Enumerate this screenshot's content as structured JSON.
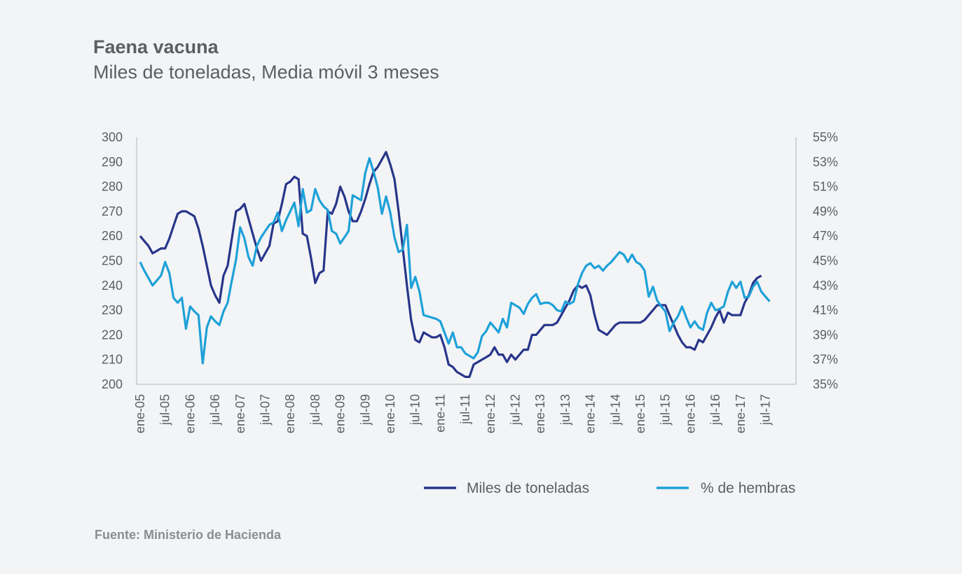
{
  "title": "Faena vacuna",
  "subtitle": "Miles de toneladas, Media móvil 3 meses",
  "source": "Fuente: Ministerio de Hacienda",
  "chart_data": {
    "type": "line",
    "x_labels": [
      "ene-05",
      "jul-05",
      "ene-06",
      "jul-06",
      "ene-07",
      "jul-07",
      "ene-08",
      "jul-08",
      "ene-09",
      "jul-09",
      "ene-10",
      "jul-10",
      "ene-11",
      "jul-11",
      "ene-12",
      "jul-12",
      "ene-13",
      "jul-13",
      "ene-14",
      "jul-14",
      "ene-15",
      "jul-15",
      "ene-16",
      "jul-16",
      "ene-17",
      "jul-17"
    ],
    "y_left": {
      "ticks": [
        "200",
        "210",
        "220",
        "230",
        "240",
        "250",
        "260",
        "270",
        "280",
        "290",
        "300"
      ],
      "ylim": [
        200,
        300
      ]
    },
    "y_right": {
      "ticks": [
        "35%",
        "37%",
        "39%",
        "41%",
        "43%",
        "45%",
        "47%",
        "49%",
        "51%",
        "53%",
        "55%"
      ],
      "ylim": [
        35,
        55
      ]
    },
    "series": [
      {
        "name": "Miles de toneladas",
        "axis": "left",
        "color": "#28358a",
        "values": [
          260,
          258,
          256,
          253,
          254,
          255,
          255,
          259,
          264,
          269,
          270,
          270,
          269,
          268,
          263,
          256,
          248,
          240,
          236,
          233,
          244,
          248,
          259,
          270,
          271,
          273,
          267,
          261,
          255,
          250,
          253,
          256,
          265,
          266,
          273,
          281,
          282,
          284,
          283,
          261,
          260,
          251,
          241,
          245,
          246,
          270,
          269,
          273,
          280,
          276,
          270,
          266,
          266,
          270,
          275,
          281,
          286,
          288,
          291,
          294,
          289,
          283,
          270,
          255,
          240,
          226,
          218,
          217,
          221,
          220,
          219,
          219,
          220,
          215,
          208,
          207,
          205,
          204,
          203,
          203,
          208,
          209,
          210,
          211,
          212,
          215,
          212,
          212,
          209,
          212,
          210,
          212,
          214,
          214,
          220,
          220,
          222,
          224,
          224,
          224,
          225,
          228,
          231,
          234,
          238,
          240,
          239,
          240,
          236,
          228,
          222,
          221,
          220,
          222,
          224,
          225,
          225,
          225,
          225,
          225,
          225,
          226,
          228,
          230,
          232,
          232,
          232,
          228,
          224,
          220,
          217,
          215,
          215,
          214,
          218,
          217,
          220,
          223,
          227,
          230,
          225,
          229,
          228,
          228,
          228,
          233,
          236,
          241,
          243,
          244
        ]
      },
      {
        "name": "% de hembras",
        "axis": "right",
        "color": "#1ea1d8",
        "values": [
          44.9,
          44.2,
          43.6,
          43.0,
          43.4,
          43.8,
          44.9,
          44.0,
          42.0,
          41.6,
          42.0,
          39.5,
          41.3,
          40.9,
          40.6,
          36.7,
          39.6,
          40.5,
          40.1,
          39.8,
          40.9,
          41.6,
          43.4,
          45.1,
          47.7,
          46.8,
          45.3,
          44.6,
          46.2,
          46.9,
          47.4,
          47.9,
          48.1,
          48.9,
          47.4,
          48.3,
          49.0,
          49.7,
          47.8,
          50.8,
          48.9,
          49.1,
          50.8,
          49.9,
          49.4,
          49.1,
          47.4,
          47.2,
          46.4,
          46.9,
          47.4,
          50.3,
          50.1,
          49.9,
          52.1,
          53.3,
          52.2,
          50.9,
          48.8,
          50.2,
          48.9,
          46.9,
          45.7,
          45.9,
          47.9,
          42.8,
          43.7,
          42.5,
          40.6,
          40.5,
          40.4,
          40.3,
          40.1,
          39.2,
          38.3,
          39.2,
          38.0,
          38.0,
          37.5,
          37.3,
          37.1,
          37.6,
          38.9,
          39.3,
          40.0,
          39.6,
          39.2,
          40.3,
          39.6,
          41.6,
          41.4,
          41.2,
          40.7,
          41.5,
          42.0,
          42.3,
          41.5,
          41.6,
          41.6,
          41.4,
          41.0,
          40.9,
          41.7,
          41.5,
          41.7,
          43.1,
          44.0,
          44.6,
          44.8,
          44.4,
          44.6,
          44.2,
          44.6,
          44.9,
          45.3,
          45.7,
          45.5,
          44.9,
          45.5,
          44.9,
          44.7,
          44.2,
          42.1,
          42.9,
          41.8,
          41.3,
          40.9,
          39.3,
          40.0,
          40.5,
          41.3,
          40.4,
          39.6,
          40.1,
          39.6,
          39.4,
          40.8,
          41.6,
          41.0,
          41.1,
          41.3,
          42.5,
          43.3,
          42.8,
          43.3,
          42.0,
          42.1,
          42.9,
          43.3,
          42.5,
          42.1,
          41.7
        ]
      }
    ],
    "legend_position": "bottom-right"
  }
}
